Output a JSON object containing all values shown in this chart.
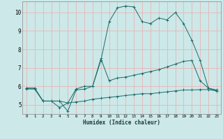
{
  "background_color": "#cde8e8",
  "grid_color": "#e8b4b4",
  "line_color": "#1a6b6b",
  "xlabel": "Humidex (Indice chaleur)",
  "xlim": [
    -0.5,
    23.5
  ],
  "ylim": [
    4.5,
    10.6
  ],
  "yticks": [
    5,
    6,
    7,
    8,
    9,
    10
  ],
  "xticks": [
    0,
    1,
    2,
    3,
    4,
    5,
    6,
    7,
    8,
    9,
    10,
    11,
    12,
    13,
    14,
    15,
    16,
    17,
    18,
    19,
    20,
    21,
    22,
    23
  ],
  "series": [
    {
      "x": [
        0,
        1,
        2,
        3,
        4,
        5,
        6,
        7,
        8,
        9,
        10,
        11,
        12,
        13,
        14,
        15,
        16,
        17,
        18,
        19,
        20,
        21,
        22,
        23
      ],
      "y": [
        5.9,
        5.9,
        5.2,
        5.2,
        5.2,
        4.65,
        5.8,
        5.85,
        6.0,
        7.4,
        9.5,
        10.25,
        10.35,
        10.3,
        9.5,
        9.4,
        9.7,
        9.6,
        10.0,
        9.4,
        8.5,
        7.4,
        5.9,
        5.8
      ]
    },
    {
      "x": [
        0,
        1,
        2,
        3,
        4,
        5,
        6,
        7,
        8,
        9,
        10,
        11,
        12,
        13,
        14,
        15,
        16,
        17,
        18,
        19,
        20,
        21,
        22,
        23
      ],
      "y": [
        5.9,
        5.9,
        5.2,
        5.2,
        4.85,
        5.1,
        5.85,
        6.0,
        6.0,
        7.5,
        6.3,
        6.45,
        6.5,
        6.6,
        6.7,
        6.8,
        6.9,
        7.05,
        7.2,
        7.35,
        7.4,
        6.3,
        5.9,
        5.75
      ]
    },
    {
      "x": [
        0,
        1,
        2,
        3,
        4,
        5,
        6,
        7,
        8,
        9,
        10,
        11,
        12,
        13,
        14,
        15,
        16,
        17,
        18,
        19,
        20,
        21,
        22,
        23
      ],
      "y": [
        5.85,
        5.85,
        5.2,
        5.2,
        5.2,
        5.1,
        5.15,
        5.2,
        5.3,
        5.35,
        5.4,
        5.45,
        5.5,
        5.55,
        5.6,
        5.6,
        5.65,
        5.7,
        5.75,
        5.8,
        5.8,
        5.82,
        5.82,
        5.75
      ]
    }
  ]
}
